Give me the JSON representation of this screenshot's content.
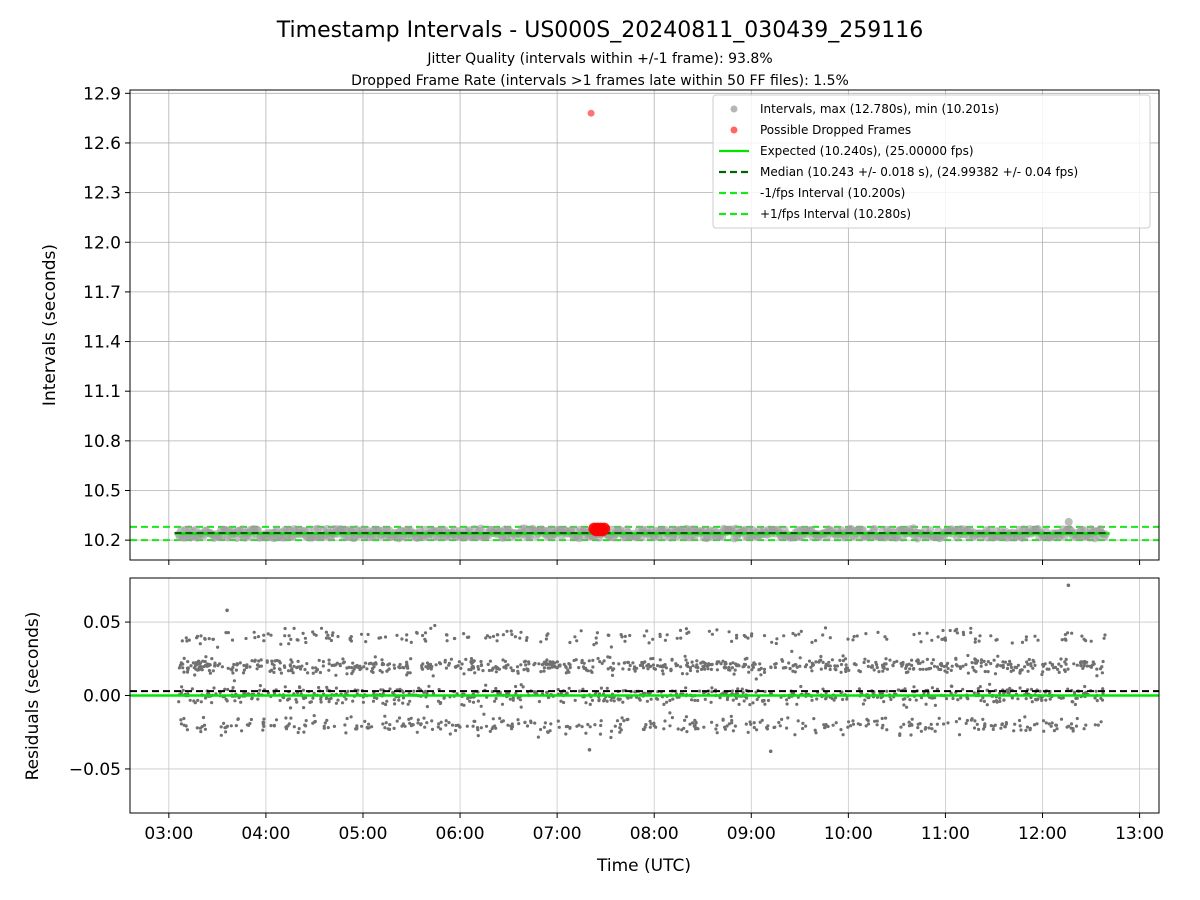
{
  "chart_data": {
    "type": "scatter",
    "title": "Timestamp Intervals - US000S_20240811_030439_259116",
    "subtitle_lines": [
      "Jitter Quality (intervals within +/-1 frame): 93.8%",
      "Dropped Frame Rate (intervals >1 frames late within 50 FF files): 1.5%"
    ],
    "colors": {
      "intervals": "#9e9e9e",
      "dropped": "#ff0000",
      "expected": "#00e600",
      "median": "#006400",
      "bounds": "#1ae61a",
      "residuals": "#707070"
    },
    "x_axis": {
      "label": "Time (UTC)",
      "range_hours": [
        2.6,
        13.2
      ],
      "ticks": [
        "03:00",
        "04:00",
        "05:00",
        "06:00",
        "07:00",
        "08:00",
        "09:00",
        "10:00",
        "11:00",
        "12:00",
        "13:00"
      ],
      "data_span_hours": [
        3.1,
        12.65
      ]
    },
    "top_panel": {
      "ylabel": "Intervals (seconds)",
      "ylim": [
        10.08,
        12.92
      ],
      "yticks": [
        "10.2",
        "10.5",
        "10.8",
        "11.1",
        "11.4",
        "11.7",
        "12.0",
        "12.3",
        "12.6",
        "12.9"
      ],
      "grid": true,
      "legend_position": "upper-right",
      "legend": [
        "Intervals, max (12.780s), min (10.201s)",
        "Possible Dropped Frames",
        "Expected (10.240s), (25.00000 fps)",
        "Median (10.243 +/- 0.018 s), (24.99382 +/- 0.04 fps)",
        "-1/fps Interval (10.200s)",
        "+1/fps Interval (10.280s)"
      ],
      "expected_interval": 10.24,
      "median_interval": 10.243,
      "lower_bound": 10.2,
      "upper_bound": 10.28,
      "interval_max": 12.78,
      "interval_min": 10.201,
      "dropped_frames": [
        {
          "time": "07:21",
          "interval": 12.78
        },
        {
          "time": "07:23",
          "interval": 10.27
        },
        {
          "time": "07:24",
          "interval": 10.26
        },
        {
          "time": "07:25",
          "interval": 10.27
        },
        {
          "time": "07:26",
          "interval": 10.26
        },
        {
          "time": "07:27",
          "interval": 10.27
        },
        {
          "time": "07:28",
          "interval": 10.26
        },
        {
          "time": "07:29",
          "interval": 10.27
        }
      ]
    },
    "bottom_panel": {
      "ylabel": "Residuals (seconds)",
      "ylim": [
        -0.08,
        0.08
      ],
      "yticks": [
        "−0.05",
        "0.00",
        "0.05"
      ],
      "ytick_values": [
        -0.05,
        0.0,
        0.05
      ],
      "grid": true,
      "expected_residual": 0.0,
      "median_residual": 0.003,
      "residual_bands": [
        0.02,
        0.0,
        -0.02
      ],
      "notable_residuals": [
        {
          "time": "03:36",
          "residual": 0.058
        },
        {
          "time": "12:16",
          "residual": 0.075
        },
        {
          "time": "09:12",
          "residual": -0.038
        },
        {
          "time": "07:20",
          "residual": -0.037
        }
      ]
    }
  }
}
